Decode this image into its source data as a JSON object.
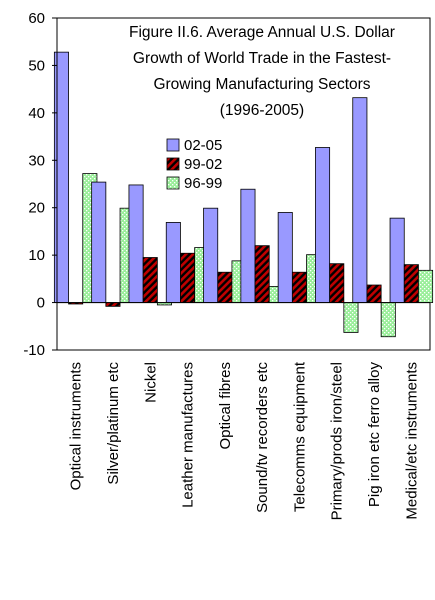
{
  "chart_data": {
    "type": "bar",
    "title_lines": [
      "Figure II.6. Average Annual U.S. Dollar",
      "Growth of World Trade in the Fastest-",
      "Growing Manufacturing Sectors",
      "(1996-2005)"
    ],
    "categories": [
      "Optical instruments",
      "Silver/platinum etc",
      "Nickel",
      "Leather manufactures",
      "Optical fibres",
      "Sound/tv recorders etc",
      "Telecomms equipment",
      "Primary/prods iron/steel",
      "Pig iron etc ferro alloy",
      "Medical/etc instruments"
    ],
    "series": [
      {
        "name": "02-05",
        "color": "#9999ff",
        "pattern": "solid",
        "values": [
          52.8,
          25.4,
          24.8,
          16.9,
          19.9,
          23.9,
          19.0,
          32.7,
          43.2,
          17.8
        ]
      },
      {
        "name": "99-02",
        "color": "#c00000",
        "pattern": "diagonal-stripes",
        "values": [
          -0.3,
          -0.8,
          9.5,
          10.4,
          6.4,
          12.0,
          6.4,
          8.2,
          3.7,
          8.0
        ]
      },
      {
        "name": "96-99",
        "color": "#99ee99",
        "pattern": "dots",
        "values": [
          27.2,
          19.9,
          -0.5,
          11.6,
          8.8,
          3.4,
          10.1,
          -6.3,
          -7.2,
          6.8
        ]
      }
    ],
    "yticks": [
      -10,
      0,
      10,
      20,
      30,
      40,
      50,
      60
    ],
    "ylim": [
      -10,
      60
    ],
    "xlabel": "",
    "ylabel": "",
    "legend_position": "upper-center",
    "grid": false
  }
}
